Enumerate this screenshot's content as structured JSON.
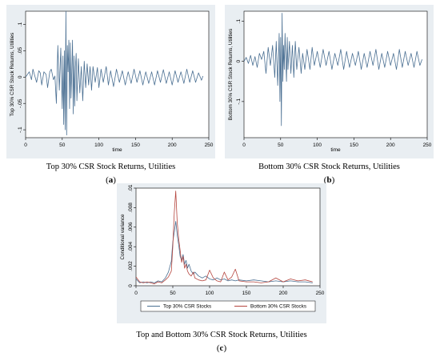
{
  "captions": {
    "a": "Top 30% CSR Stock Returns, Utilities",
    "b": "Bottom 30% CSR Stock Returns, Utilities",
    "c": "Top and Bottom 30% CSR Stock Returns, Utilities"
  },
  "letters": {
    "a": "a",
    "b": "b",
    "c": "c"
  },
  "colors": {
    "frame_bg": "#e9eef2",
    "plot_bg": "#ffffff",
    "series_blue": "#4a6f92",
    "series_red": "#b5463f",
    "axis": "#000000"
  },
  "chart_data": [
    {
      "id": "a",
      "type": "line",
      "title": "",
      "xlabel": "time",
      "ylabel": "Top 30% CSR Stock Returns, Utilities",
      "xlim": [
        0,
        250
      ],
      "ylim": [
        -0.115,
        0.125
      ],
      "xticks": [
        0,
        50,
        100,
        150,
        200,
        250
      ],
      "xtick_labels": [
        "0",
        "50",
        "100",
        "150",
        "200",
        "250"
      ],
      "yticks": [
        -0.1,
        -0.05,
        0,
        0.05,
        0.1
      ],
      "ytick_labels": [
        "-.1",
        "-.05",
        "0",
        ".05",
        ".1"
      ],
      "grid": false,
      "series": [
        {
          "color": "#4a6f92",
          "x": [
            0,
            5,
            8,
            10,
            12,
            15,
            18,
            20,
            22,
            25,
            28,
            30,
            33,
            35,
            38,
            40,
            42,
            44,
            46,
            48,
            50,
            51,
            52,
            53,
            54,
            55,
            56,
            57,
            58,
            59,
            60,
            61,
            62,
            63,
            64,
            65,
            66,
            67,
            68,
            69,
            70,
            72,
            74,
            76,
            78,
            80,
            82,
            84,
            86,
            88,
            90,
            92,
            95,
            98,
            100,
            103,
            106,
            110,
            113,
            116,
            120,
            124,
            128,
            132,
            136,
            140,
            144,
            148,
            152,
            156,
            160,
            164,
            168,
            172,
            176,
            180,
            184,
            188,
            192,
            196,
            200,
            204,
            208,
            212,
            216,
            220,
            224,
            228,
            232,
            236,
            240,
            242
          ],
          "y": [
            0,
            0.01,
            -0.005,
            0.015,
            0.005,
            -0.01,
            0.012,
            0.008,
            -0.015,
            0.01,
            0.005,
            -0.02,
            0.01,
            0.015,
            -0.005,
            0.002,
            -0.05,
            0.06,
            -0.025,
            0.055,
            -0.06,
            0.04,
            -0.09,
            0.05,
            -0.1,
            0.125,
            -0.11,
            0.06,
            0.01,
            0.07,
            -0.06,
            0.065,
            -0.04,
            0.01,
            0.07,
            -0.07,
            0.04,
            -0.055,
            0.02,
            0.045,
            -0.045,
            0.035,
            -0.03,
            0.02,
            -0.045,
            0.03,
            -0.02,
            0.025,
            -0.015,
            0.02,
            -0.025,
            0.02,
            -0.01,
            0.018,
            -0.02,
            0.015,
            -0.01,
            0.02,
            -0.015,
            0.012,
            -0.018,
            0.015,
            -0.01,
            0.012,
            -0.015,
            0.01,
            -0.012,
            0.015,
            -0.01,
            0.012,
            -0.015,
            0.01,
            -0.012,
            0.01,
            -0.015,
            0.012,
            -0.01,
            0.014,
            -0.012,
            0.01,
            -0.015,
            0.012,
            -0.01,
            0.01,
            -0.012,
            0.015,
            -0.01,
            0.012,
            -0.01,
            0.008,
            -0.006,
            0.002
          ]
        }
      ]
    },
    {
      "id": "b",
      "type": "line",
      "title": "",
      "xlabel": "time",
      "ylabel": "Bottom 30% CSR Stock Returns, Utilities",
      "xlim": [
        0,
        250
      ],
      "ylim": [
        -0.19,
        0.125
      ],
      "xticks": [
        0,
        50,
        100,
        150,
        200,
        250
      ],
      "xtick_labels": [
        "0",
        "50",
        "100",
        "150",
        "200",
        "250"
      ],
      "yticks": [
        -0.1,
        0,
        0.1
      ],
      "ytick_labels": [
        "-.1",
        "0",
        ".1"
      ],
      "grid": false,
      "series": [
        {
          "color": "#4a6f92",
          "x": [
            0,
            3,
            6,
            9,
            12,
            15,
            18,
            21,
            24,
            27,
            30,
            33,
            36,
            39,
            42,
            44,
            46,
            48,
            49,
            50,
            51,
            52,
            53,
            54,
            55,
            56,
            57,
            58,
            59,
            60,
            62,
            64,
            66,
            68,
            70,
            72,
            75,
            78,
            80,
            83,
            86,
            90,
            93,
            96,
            100,
            104,
            108,
            112,
            116,
            120,
            124,
            128,
            132,
            136,
            140,
            144,
            148,
            152,
            156,
            160,
            164,
            168,
            172,
            176,
            180,
            184,
            188,
            192,
            196,
            200,
            204,
            208,
            212,
            216,
            220,
            224,
            228,
            232,
            236,
            240,
            243
          ],
          "y": [
            0,
            0.01,
            -0.005,
            0.015,
            -0.01,
            0.012,
            -0.015,
            0.02,
            0.005,
            0.025,
            -0.03,
            0.035,
            -0.01,
            0.04,
            -0.04,
            0.05,
            -0.06,
            0.07,
            -0.1,
            0.06,
            -0.16,
            0.12,
            -0.05,
            0.04,
            -0.02,
            0.07,
            0.01,
            -0.05,
            0.06,
            -0.02,
            0.05,
            -0.03,
            0.04,
            -0.04,
            0.05,
            -0.02,
            0.035,
            -0.03,
            0.02,
            -0.02,
            0.03,
            -0.02,
            0.035,
            -0.01,
            0.025,
            -0.015,
            0.03,
            -0.01,
            0.025,
            -0.02,
            0.02,
            -0.01,
            0.03,
            -0.02,
            0.025,
            -0.015,
            0.02,
            -0.01,
            0.025,
            -0.02,
            0.02,
            -0.015,
            0.025,
            -0.01,
            0.03,
            -0.02,
            0.02,
            -0.015,
            0.025,
            -0.01,
            0.02,
            -0.02,
            0.03,
            -0.015,
            0.025,
            -0.01,
            0.02,
            -0.015,
            0.025,
            -0.01,
            0.005
          ]
        }
      ]
    },
    {
      "id": "c",
      "type": "line",
      "title": "",
      "xlabel": "",
      "ylabel": "Conditional variance",
      "xlim": [
        0,
        250
      ],
      "ylim": [
        0,
        0.01
      ],
      "xticks": [
        0,
        50,
        100,
        150,
        200,
        250
      ],
      "xtick_labels": [
        "0",
        "50",
        "100",
        "150",
        "200",
        "250"
      ],
      "yticks": [
        0,
        0.002,
        0.004,
        0.006,
        0.008,
        0.01
      ],
      "ytick_labels": [
        "0",
        ".002",
        ".004",
        ".006",
        ".008",
        ".01"
      ],
      "grid": false,
      "legend": "bottom",
      "series": [
        {
          "name": "Top 30% CSR Stocks",
          "color": "#4a6f92",
          "x": [
            0,
            5,
            10,
            15,
            20,
            25,
            30,
            35,
            40,
            44,
            48,
            50,
            52,
            54,
            56,
            58,
            60,
            62,
            64,
            66,
            68,
            70,
            72,
            75,
            78,
            80,
            85,
            90,
            95,
            100,
            105,
            110,
            115,
            120,
            125,
            130,
            135,
            140,
            150,
            160,
            170,
            180,
            190,
            200,
            210,
            220,
            230,
            240
          ],
          "y": [
            0.0007,
            0.0003,
            0.0004,
            0.0003,
            0.0004,
            0.0003,
            0.0005,
            0.0004,
            0.0008,
            0.0014,
            0.0025,
            0.0045,
            0.0055,
            0.0066,
            0.0052,
            0.0042,
            0.003,
            0.0026,
            0.0032,
            0.0022,
            0.0026,
            0.0018,
            0.0022,
            0.0015,
            0.0012,
            0.0014,
            0.001,
            0.0008,
            0.001,
            0.0007,
            0.0006,
            0.0008,
            0.0006,
            0.0007,
            0.0005,
            0.0006,
            0.0005,
            0.0006,
            0.0005,
            0.0006,
            0.0005,
            0.0004,
            0.0005,
            0.0004,
            0.0005,
            0.0004,
            0.0004,
            0.0003
          ]
        },
        {
          "name": "Bottom 30% CSR Stocks",
          "color": "#b5463f",
          "x": [
            0,
            5,
            10,
            15,
            20,
            25,
            30,
            35,
            40,
            44,
            48,
            50,
            52,
            54,
            56,
            58,
            60,
            62,
            64,
            66,
            68,
            70,
            72,
            75,
            78,
            80,
            85,
            90,
            95,
            100,
            105,
            110,
            115,
            120,
            125,
            130,
            135,
            140,
            150,
            160,
            170,
            180,
            190,
            200,
            210,
            220,
            230,
            240
          ],
          "y": [
            0.0009,
            0.0004,
            0.0003,
            0.0004,
            0.0003,
            0.0002,
            0.0004,
            0.0003,
            0.0006,
            0.0009,
            0.0015,
            0.004,
            0.0075,
            0.0097,
            0.0065,
            0.0048,
            0.0036,
            0.0024,
            0.003,
            0.0018,
            0.0022,
            0.0015,
            0.0012,
            0.001,
            0.0014,
            0.0008,
            0.0006,
            0.0005,
            0.0006,
            0.0016,
            0.0008,
            0.0005,
            0.0004,
            0.0014,
            0.0006,
            0.0009,
            0.0017,
            0.0005,
            0.0004,
            0.0004,
            0.0003,
            0.0004,
            0.0008,
            0.0004,
            0.0007,
            0.0005,
            0.0006,
            0.0004
          ]
        }
      ]
    }
  ]
}
